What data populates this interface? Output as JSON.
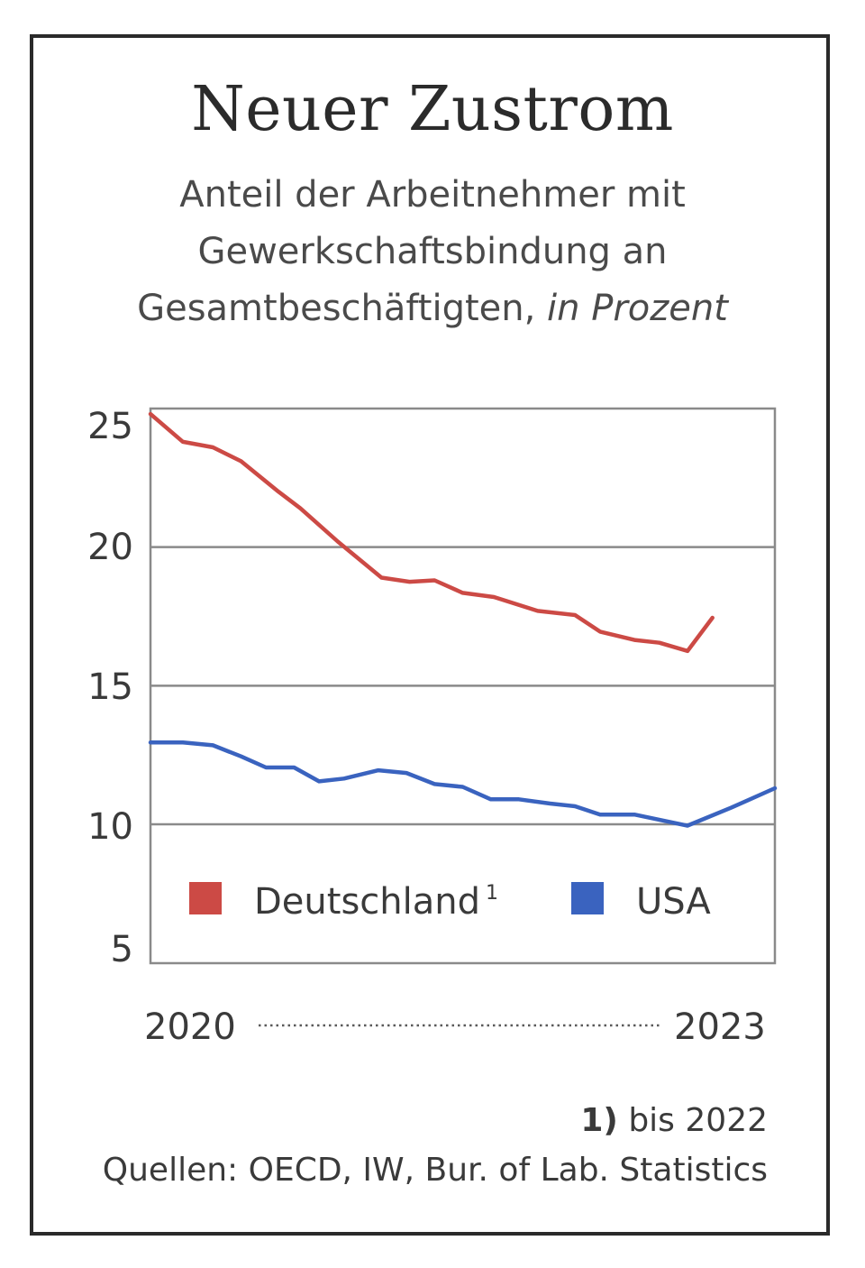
{
  "header": {
    "title": "Neuer Zustrom",
    "subtitle_line1": "Anteil der Arbeitnehmer mit",
    "subtitle_line2": "Gewerkschaftsbindung an",
    "subtitle_line3": "Gesamtbeschäftigten,",
    "subtitle_unit": "in Prozent"
  },
  "footer": {
    "footnote_marker": "1)",
    "footnote_text": "bis 2022",
    "sources": "Quellen: OECD, IW, Bur. of Lab. Statistics"
  },
  "chart_data": {
    "type": "line",
    "title": "Neuer Zustrom",
    "xlabel": "",
    "ylabel": "in Prozent",
    "x_start_label": "2020",
    "x_end_label": "2023",
    "ylim": [
      5,
      25
    ],
    "yticks": [
      25,
      20,
      15,
      10,
      5
    ],
    "gridlines": [
      20,
      15,
      10
    ],
    "series": [
      {
        "name": "Deutschland",
        "name_sup": "1",
        "color": "#cc4a45",
        "x": [
          0,
          0.052,
          0.1,
          0.145,
          0.205,
          0.24,
          0.3,
          0.37,
          0.415,
          0.455,
          0.5,
          0.55,
          0.62,
          0.68,
          0.72,
          0.775,
          0.815,
          0.86,
          0.9
        ],
        "values": [
          24.8,
          23.8,
          23.6,
          23.1,
          22.0,
          21.4,
          20.2,
          18.9,
          18.75,
          18.8,
          18.35,
          18.2,
          17.7,
          17.55,
          16.95,
          16.65,
          16.55,
          16.25,
          17.45
        ]
      },
      {
        "name": "USA",
        "color": "#3a63bf",
        "x": [
          0,
          0.052,
          0.1,
          0.145,
          0.185,
          0.23,
          0.27,
          0.31,
          0.365,
          0.41,
          0.455,
          0.5,
          0.545,
          0.59,
          0.64,
          0.68,
          0.72,
          0.775,
          0.86,
          0.93,
          1.0
        ],
        "values": [
          12.95,
          12.95,
          12.85,
          12.45,
          12.05,
          12.05,
          11.55,
          11.65,
          11.95,
          11.85,
          11.45,
          11.35,
          10.9,
          10.9,
          10.75,
          10.65,
          10.35,
          10.35,
          9.95,
          10.6,
          11.3
        ]
      }
    ],
    "legend_position": "bottom"
  }
}
